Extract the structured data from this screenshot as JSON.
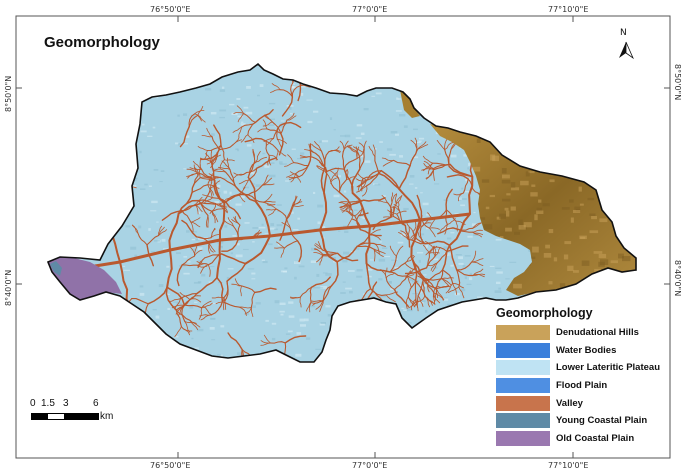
{
  "map": {
    "title": "Geomorphology",
    "north_label": "N",
    "coordinates": {
      "top": [
        "76°50'0\"E",
        "77°0'0\"E",
        "77°10'0\"E"
      ],
      "bottom": [
        "76°50'0\"E",
        "77°0'0\"E",
        "77°10'0\"E"
      ],
      "left": [
        "8°50'0\"N",
        "8°40'0\"N"
      ],
      "right": [
        "8°50'0\"N",
        "8°40'0\"N"
      ]
    },
    "legend": {
      "title": "Geomorphology",
      "items": [
        {
          "label": "Denudational Hills",
          "color": "#c9a25a"
        },
        {
          "label": "Water Bodies",
          "color": "#3b7fdb"
        },
        {
          "label": "Lower Lateritic Plateau",
          "color": "#bfe3f3"
        },
        {
          "label": "Flood Plain",
          "color": "#4f8fe2"
        },
        {
          "label": "Valley",
          "color": "#c8744c"
        },
        {
          "label": "Young Coastal Plain",
          "color": "#5f8aa6"
        },
        {
          "label": " Old Coastal Plain",
          "color": "#9a78b0"
        }
      ]
    },
    "scale_bar": {
      "ticks": [
        "0",
        "1.5",
        "3",
        "6"
      ],
      "unit": "km"
    },
    "colors": {
      "plateau": "#a9d3e4",
      "valley": "#b9592f",
      "hills": "#a67f30",
      "hills_dark": "#7d5e22",
      "coastal": "#9072a8",
      "outline": "#111111"
    }
  }
}
